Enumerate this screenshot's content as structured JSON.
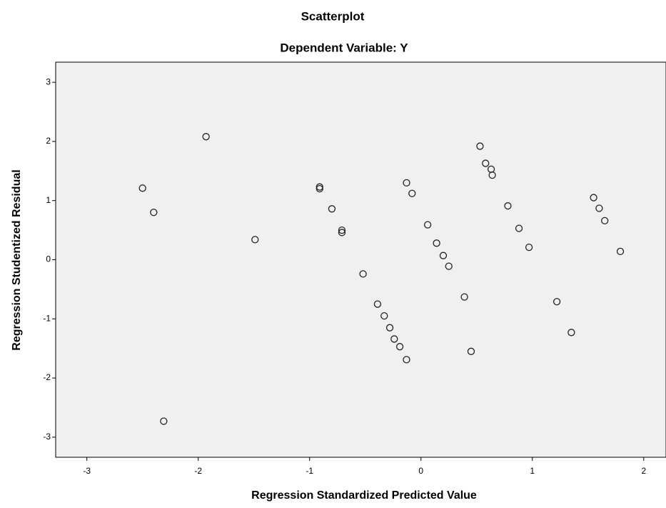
{
  "chart_data": {
    "type": "scatter",
    "title": "Scatterplot",
    "subtitle": "Dependent Variable: Y",
    "x_label": "Regression Standardized Predicted Value",
    "y_label": "Regression Studentized Residual",
    "xlim": [
      -3.28,
      2.2
    ],
    "ylim": [
      -3.34,
      3.34
    ],
    "xticks": [
      -3,
      -2,
      -1,
      0,
      1,
      2
    ],
    "yticks": [
      -3,
      -2,
      -1,
      0,
      1,
      2,
      3
    ],
    "color": "#222222",
    "background": "#f0f0f0",
    "x": [
      -2.5,
      -2.4,
      -1.93,
      -2.31,
      -1.49,
      -0.91,
      -0.91,
      -0.8,
      -0.71,
      -0.71,
      -0.52,
      -0.39,
      -0.33,
      -0.28,
      -0.24,
      -0.19,
      -0.13,
      -0.13,
      -0.08,
      0.06,
      0.14,
      0.2,
      0.25,
      0.39,
      0.53,
      0.58,
      0.63,
      0.64,
      0.45,
      0.78,
      0.88,
      0.97,
      1.22,
      1.35,
      1.55,
      1.6,
      1.65,
      1.79
    ],
    "values": [
      1.21,
      0.8,
      2.08,
      -2.73,
      0.34,
      1.23,
      1.2,
      0.86,
      0.5,
      0.46,
      -0.24,
      -0.75,
      -0.95,
      -1.15,
      -1.34,
      -1.47,
      -1.69,
      1.3,
      1.12,
      0.59,
      0.28,
      0.07,
      -0.11,
      -0.63,
      1.92,
      1.63,
      1.53,
      1.43,
      -1.55,
      0.91,
      0.53,
      0.21,
      -0.71,
      -1.23,
      1.05,
      0.87,
      0.66,
      0.14
    ]
  }
}
